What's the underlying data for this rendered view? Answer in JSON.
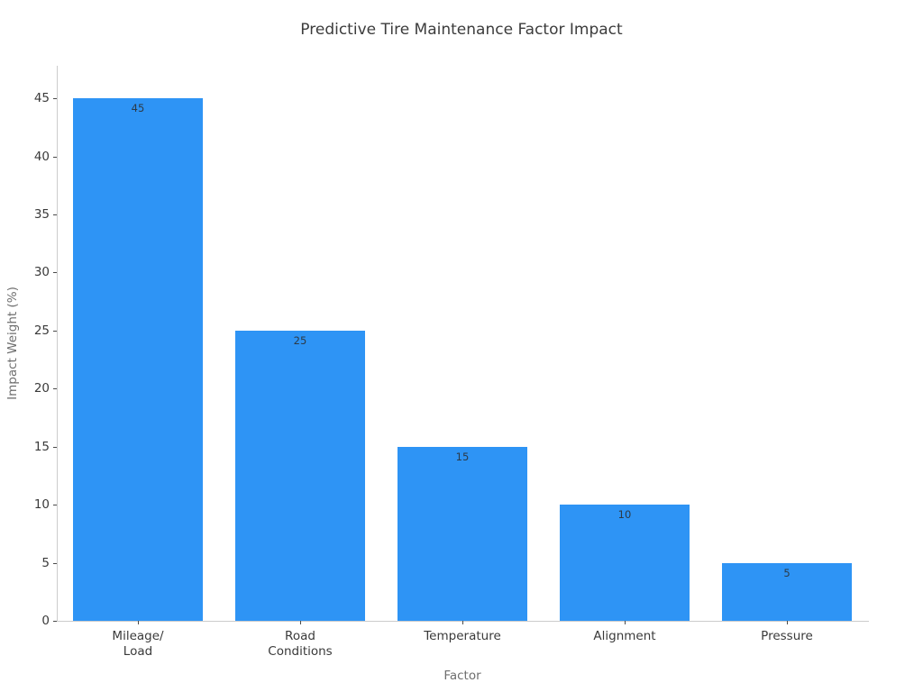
{
  "chart_data": {
    "type": "bar",
    "title": "Predictive Tire Maintenance Factor Impact",
    "xlabel": "Factor",
    "ylabel": "Impact Weight (%)",
    "categories": [
      "Mileage/\nLoad",
      "Road\nConditions",
      "Temperature",
      "Alignment",
      "Pressure"
    ],
    "values": [
      45,
      25,
      15,
      10,
      5
    ],
    "bar_labels": [
      "45",
      "25",
      "15",
      "10",
      "5"
    ],
    "yticks": [
      0,
      5,
      10,
      15,
      20,
      25,
      30,
      35,
      40,
      45
    ],
    "ylim": [
      0,
      47.8
    ],
    "grid": false,
    "legend": "none",
    "colors": {
      "bar": "#2E94F5",
      "bar_label": "#2C3A47",
      "title": "#3C3C3C",
      "tick_label": "#3A3A3A",
      "axis_label": "#6E6E6E",
      "spine": "#CCCCCC",
      "tick_mark": "#4A4A4A",
      "background": "#FFFFFF"
    }
  }
}
